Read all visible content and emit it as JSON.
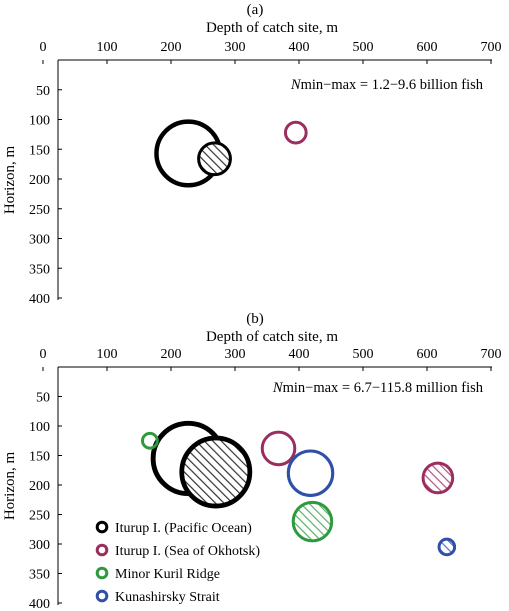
{
  "colors": {
    "iturup_pacific": "#000000",
    "iturup_okhotsk": "#9b2d5f",
    "minor_kuril": "#2e9a3e",
    "kunashirsky": "#2f50a8"
  },
  "legend": [
    {
      "label": "Iturup I. (Pacific Ocean)",
      "color": "#000000"
    },
    {
      "label": "Iturup I. (Sea of Okhotsk)",
      "color": "#9b2d5f"
    },
    {
      "label": "Minor Kuril Ridge",
      "color": "#2e9a3e"
    },
    {
      "label": "Kunashirsky Strait",
      "color": "#2f50a8"
    }
  ],
  "chart_data": [
    {
      "type": "scatter",
      "panel_label": "(a)",
      "xlabel": "Depth of catch site, m",
      "ylabel": "Horizon, m",
      "xlim": [
        0,
        700
      ],
      "ylim": [
        400,
        0
      ],
      "x_ticks": [
        "0",
        "100",
        "200",
        "300",
        "400",
        "500",
        "600",
        "700"
      ],
      "y_ticks": [
        "50",
        "100",
        "150",
        "200",
        "250",
        "300",
        "350",
        "400"
      ],
      "annotation": {
        "italic": "N",
        "text": "min−max = 1.2−9.6 billion fish"
      },
      "series": [
        {
          "name": "Iturup I. (Pacific Ocean)",
          "color": "#000000",
          "points": [
            {
              "x": 227,
              "y": 157,
              "size_rel": 0.86,
              "hatched": false
            },
            {
              "x": 268,
              "y": 166,
              "size_rel": 0.43,
              "hatched": true
            }
          ]
        },
        {
          "name": "Iturup I. (Sea of Okhotsk)",
          "color": "#9b2d5f",
          "points": [
            {
              "x": 395,
              "y": 122,
              "size_rel": 0.28,
              "hatched": false
            }
          ]
        }
      ]
    },
    {
      "type": "scatter",
      "panel_label": "(b)",
      "xlabel": "Depth of catch site, m",
      "ylabel": "Horizon, m",
      "xlim": [
        0,
        700
      ],
      "ylim": [
        400,
        0
      ],
      "x_ticks": [
        "0",
        "100",
        "200",
        "300",
        "400",
        "500",
        "600",
        "700"
      ],
      "y_ticks": [
        "50",
        "100",
        "150",
        "200",
        "250",
        "300",
        "350",
        "400"
      ],
      "annotation": {
        "italic": "N",
        "text": "min−max = 6.7−115.8 million fish"
      },
      "series": [
        {
          "name": "Iturup I. (Pacific Ocean)",
          "color": "#000000",
          "points": [
            {
              "x": 227,
              "y": 155,
              "size_rel": 0.95,
              "hatched": false
            },
            {
              "x": 270,
              "y": 178,
              "size_rel": 0.92,
              "hatched": true
            }
          ]
        },
        {
          "name": "Iturup I. (Sea of Okhotsk)",
          "color": "#9b2d5f",
          "points": [
            {
              "x": 368,
              "y": 138,
              "size_rel": 0.44,
              "hatched": false
            },
            {
              "x": 617,
              "y": 188,
              "size_rel": 0.4,
              "hatched": true
            }
          ]
        },
        {
          "name": "Minor Kuril Ridge",
          "color": "#2e9a3e",
          "points": [
            {
              "x": 167,
              "y": 125,
              "size_rel": 0.2,
              "hatched": false
            },
            {
              "x": 421,
              "y": 262,
              "size_rel": 0.52,
              "hatched": true
            }
          ]
        },
        {
          "name": "Kunashirsky Strait",
          "color": "#2f50a8",
          "points": [
            {
              "x": 418,
              "y": 180,
              "size_rel": 0.6,
              "hatched": false
            },
            {
              "x": 631,
              "y": 305,
              "size_rel": 0.21,
              "hatched": true
            }
          ]
        }
      ]
    }
  ]
}
